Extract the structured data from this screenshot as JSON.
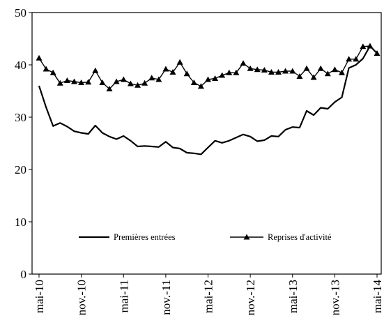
{
  "chart_data": {
    "type": "line",
    "title": "",
    "xlabel": "",
    "ylabel": "",
    "ylim": [
      0,
      50
    ],
    "yticks": [
      0,
      10,
      20,
      30,
      40,
      50
    ],
    "grid": false,
    "legend_position": "bottom-inside",
    "xtick_labels": [
      "mai-10",
      "nov.-10",
      "mai-11",
      "nov.-11",
      "mai-12",
      "nov.-12",
      "mai-13",
      "nov.-13",
      "mai-14"
    ],
    "series": [
      {
        "name": "Premières entrées",
        "marker": "none",
        "color": "#000000",
        "values": [
          36.0,
          31.9,
          28.3,
          28.9,
          28.2,
          27.3,
          27.0,
          26.8,
          28.4,
          27.0,
          26.3,
          25.8,
          26.4,
          25.5,
          24.4,
          24.5,
          24.4,
          24.3,
          25.3,
          24.2,
          24.0,
          23.2,
          23.1,
          22.9,
          24.2,
          25.5,
          25.1,
          25.5,
          26.1,
          26.7,
          26.3,
          25.4,
          25.6,
          26.4,
          26.3,
          27.6,
          28.1,
          28.0,
          31.2,
          30.4,
          31.8,
          31.6,
          32.9,
          33.8,
          39.4,
          40.0,
          41.2,
          43.6,
          42.2
        ]
      },
      {
        "name": "Reprises d'activité",
        "marker": "triangle",
        "color": "#000000",
        "values": [
          41.3,
          39.2,
          38.5,
          36.5,
          37.0,
          36.8,
          36.6,
          36.7,
          38.9,
          36.6,
          35.4,
          36.8,
          37.2,
          36.4,
          36.1,
          36.5,
          37.5,
          37.2,
          39.2,
          38.6,
          40.5,
          38.3,
          36.6,
          35.9,
          37.2,
          37.4,
          38.0,
          38.5,
          38.5,
          40.3,
          39.3,
          39.1,
          39.0,
          38.6,
          38.6,
          38.8,
          38.8,
          37.8,
          39.3,
          37.6,
          39.3,
          38.3,
          39.1,
          38.5,
          41.1,
          41.1,
          43.5,
          43.6,
          42.2
        ]
      }
    ]
  }
}
